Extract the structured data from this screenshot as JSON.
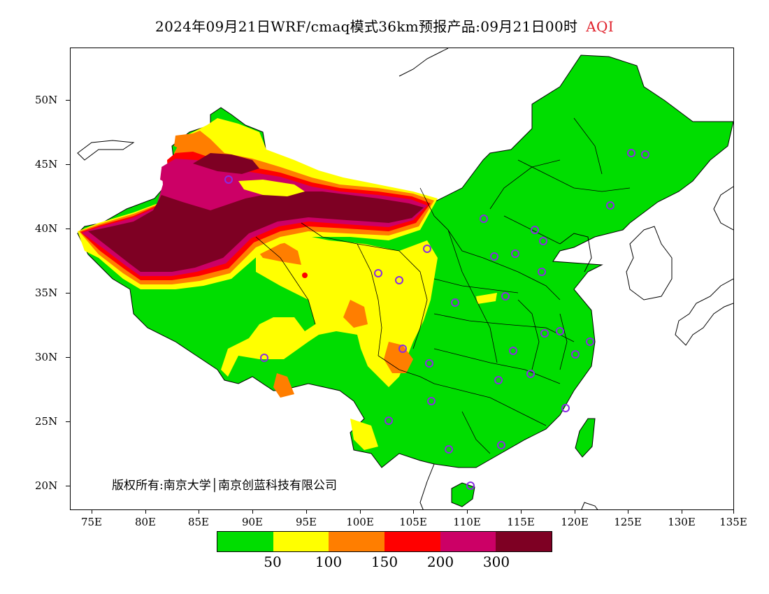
{
  "title": {
    "main": "2024年09月21日WRF/cmaq模式36km预报产品:09月21日00时",
    "variable": "AQI",
    "variable_color": "#e0202a"
  },
  "axes": {
    "lat_labels": [
      "50N",
      "45N",
      "40N",
      "35N",
      "30N",
      "25N",
      "20N"
    ],
    "lon_labels": [
      "75E",
      "80E",
      "85E",
      "90E",
      "95E",
      "100E",
      "105E",
      "110E",
      "115E",
      "120E",
      "125E",
      "130E",
      "135E"
    ]
  },
  "copyright": "版权所有:南京大学│南京创蓝科技有限公司",
  "legend": {
    "colors": [
      "#00dd00",
      "#ffff00",
      "#ff7e00",
      "#ff0000",
      "#cc0066",
      "#7e0023"
    ],
    "labels": [
      "50",
      "100",
      "150",
      "200",
      "300"
    ]
  },
  "map": {
    "city_marker_color": "#8a2be2",
    "coast_color": "#000000"
  }
}
